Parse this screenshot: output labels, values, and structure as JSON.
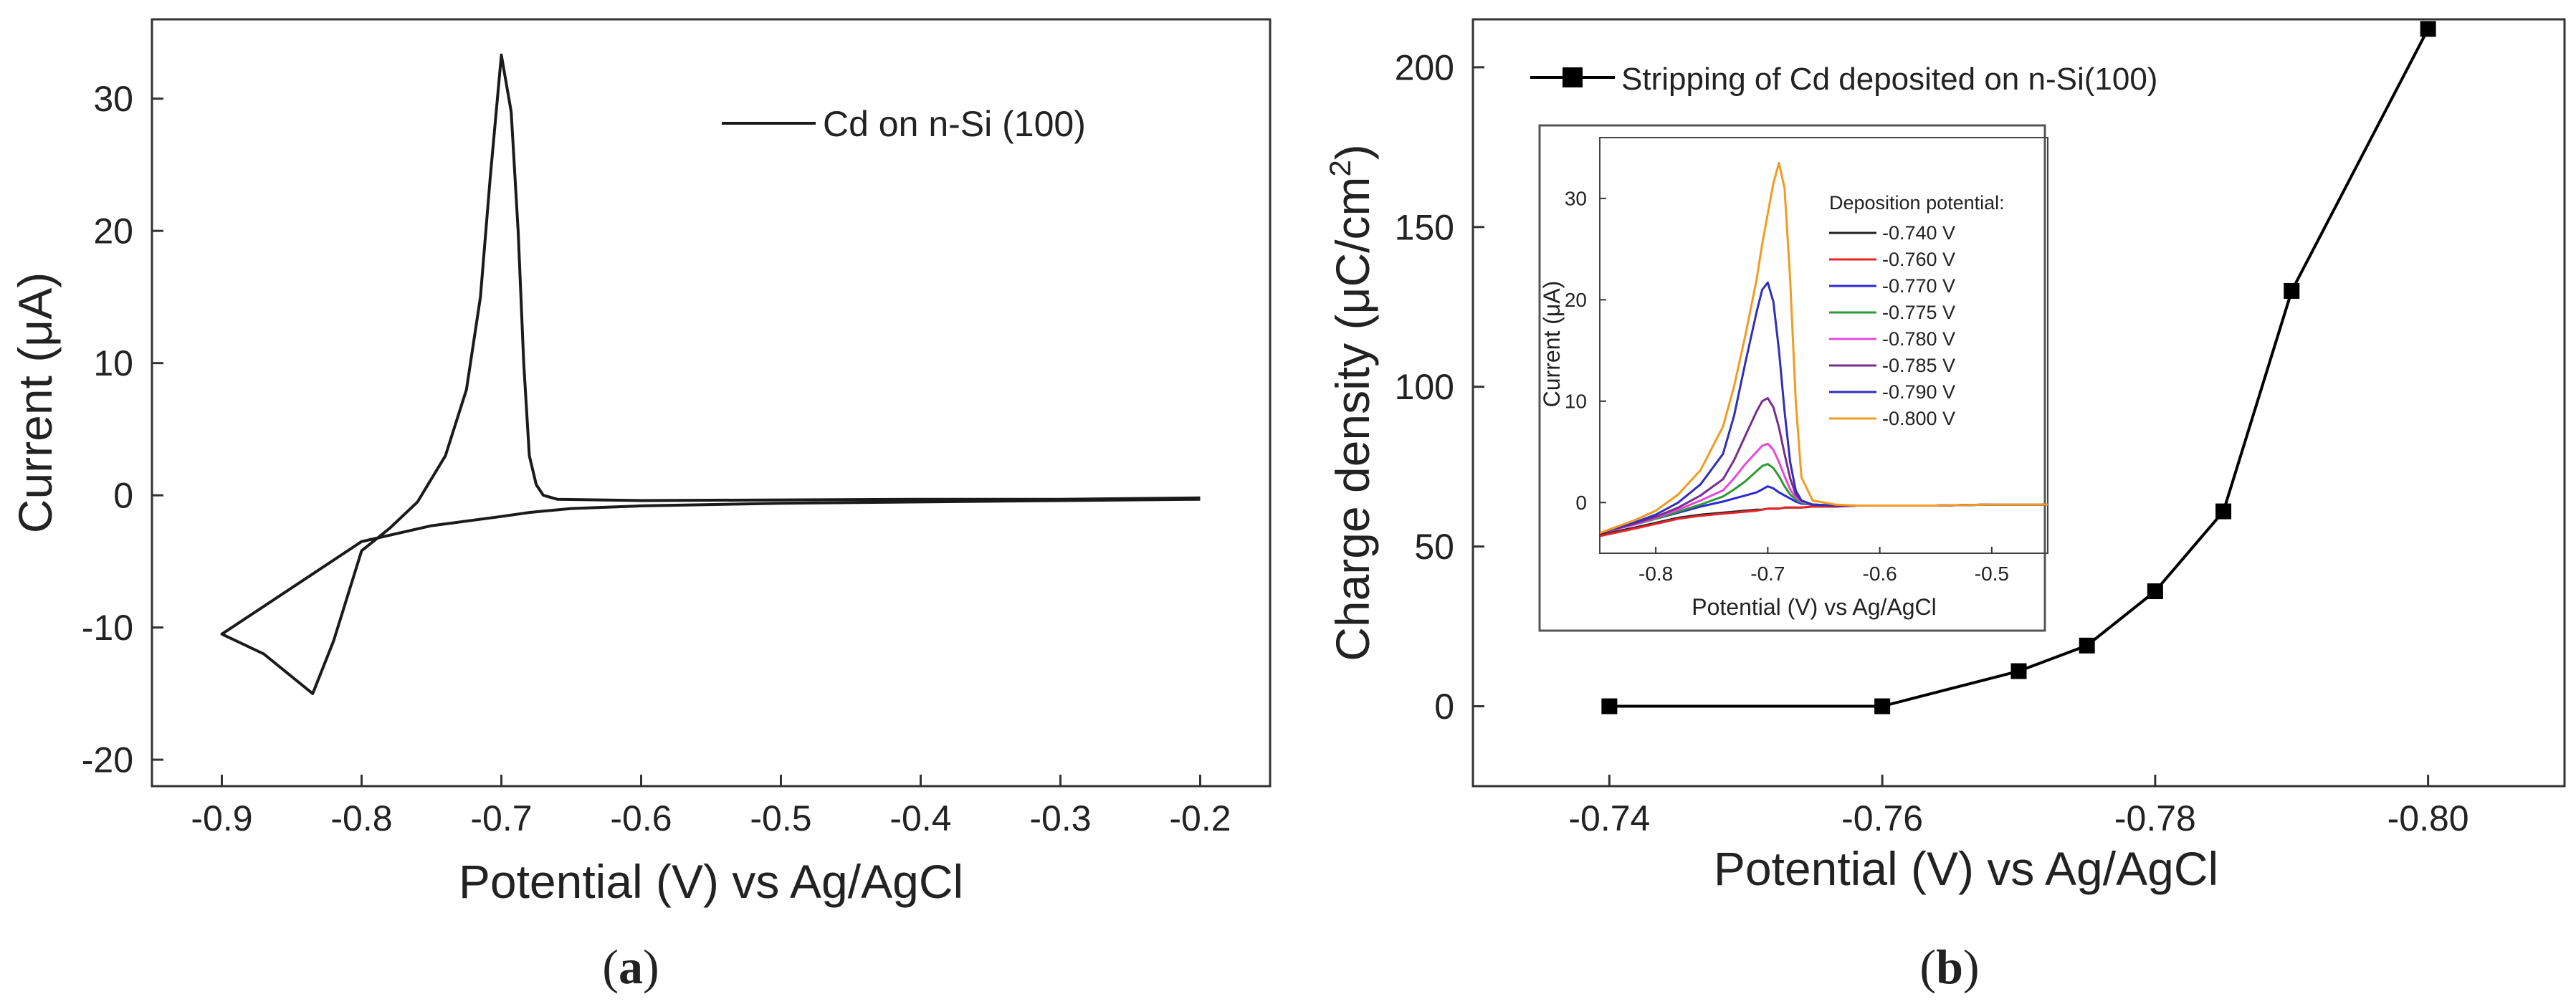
{
  "chart_data": [
    {
      "panel": "(a)",
      "panel_letter": "a",
      "type": "line",
      "title": "",
      "xlabel": "Potential (V) vs Ag/AgCl",
      "ylabel": "Current (μA)",
      "xlim": [
        -0.95,
        -0.15
      ],
      "ylim": [
        -22,
        36
      ],
      "xticks": [
        -0.9,
        -0.8,
        -0.7,
        -0.6,
        -0.5,
        -0.4,
        -0.3,
        -0.2
      ],
      "xtick_labels": [
        "-0.9",
        "-0.8",
        "-0.7",
        "-0.6",
        "-0.5",
        "-0.4",
        "-0.3",
        "-0.2"
      ],
      "yticks": [
        -20,
        -10,
        0,
        10,
        20,
        30
      ],
      "ytick_labels": [
        "-20",
        "-10",
        "0",
        "10",
        "20",
        "30"
      ],
      "legend": [
        "Cd on n-Si (100)"
      ],
      "legend_position": "top-right",
      "series": [
        {
          "name": "Cd on n-Si (100)",
          "color": "#1a1a1a",
          "x": [
            -0.2,
            -0.3,
            -0.4,
            -0.5,
            -0.6,
            -0.65,
            -0.68,
            -0.7,
            -0.75,
            -0.8,
            -0.85,
            -0.9,
            -0.87,
            -0.835,
            -0.82,
            -0.8,
            -0.78,
            -0.76,
            -0.74,
            -0.725,
            -0.715,
            -0.708,
            -0.7,
            -0.693,
            -0.688,
            -0.684,
            -0.68,
            -0.675,
            -0.67,
            -0.66,
            -0.6,
            -0.5,
            -0.4,
            -0.3,
            -0.2
          ],
          "y": [
            -0.3,
            -0.4,
            -0.5,
            -0.6,
            -0.8,
            -1.0,
            -1.3,
            -1.6,
            -2.3,
            -3.5,
            -7.0,
            -10.5,
            -12.0,
            -15.0,
            -11.0,
            -4.2,
            -2.5,
            -0.5,
            3.0,
            8.0,
            15.0,
            24.0,
            33.3,
            29.0,
            20.0,
            10.0,
            3.0,
            0.8,
            0.0,
            -0.3,
            -0.4,
            -0.35,
            -0.3,
            -0.3,
            -0.2
          ]
        }
      ]
    },
    {
      "panel": "(b)",
      "panel_letter": "b",
      "type": "line",
      "title": "",
      "xlabel": "Potential (V) vs Ag/AgCl",
      "ylabel_main": "Charge density (μC/cm",
      "ylabel_sup": "2",
      "ylabel_close": ")",
      "xlim": [
        -0.73,
        -0.81
      ],
      "ylim": [
        -25,
        215
      ],
      "xticks": [
        -0.74,
        -0.76,
        -0.78,
        -0.8
      ],
      "xtick_labels": [
        "-0.74",
        "-0.76",
        "-0.78",
        "-0.80"
      ],
      "yticks": [
        0,
        50,
        100,
        150,
        200
      ],
      "ytick_labels": [
        "0",
        "50",
        "100",
        "150",
        "200"
      ],
      "legend": [
        "Stripping of Cd deposited on n-Si(100)"
      ],
      "legend_position": "top-left",
      "series": [
        {
          "name": "Stripping of Cd deposited on n-Si(100)",
          "color": "#000000",
          "marker": "square",
          "x": [
            -0.74,
            -0.76,
            -0.77,
            -0.775,
            -0.78,
            -0.785,
            -0.79,
            -0.8
          ],
          "y": [
            0,
            0,
            11,
            19,
            36,
            61,
            130,
            212
          ]
        }
      ],
      "inset": {
        "type": "line",
        "xlabel": "Potential (V) vs Ag/AgCl",
        "ylabel": "Current (μA)",
        "xlim": [
          -0.85,
          -0.45
        ],
        "ylim": [
          -5,
          36
        ],
        "xticks": [
          -0.8,
          -0.7,
          -0.6,
          -0.5
        ],
        "xtick_labels": [
          "-0.8",
          "-0.7",
          "-0.6",
          "-0.5"
        ],
        "yticks": [
          0,
          10,
          20,
          30
        ],
        "ytick_labels": [
          "0",
          "10",
          "20",
          "30"
        ],
        "legend_title": "Deposition potential:",
        "legend_position": "top-right",
        "x": [
          -0.85,
          -0.82,
          -0.8,
          -0.78,
          -0.76,
          -0.74,
          -0.73,
          -0.72,
          -0.71,
          -0.705,
          -0.7,
          -0.695,
          -0.69,
          -0.685,
          -0.68,
          -0.675,
          -0.67,
          -0.66,
          -0.64,
          -0.62,
          -0.6,
          -0.55,
          -0.5,
          -0.45
        ],
        "series": [
          {
            "name": "-0.740 V",
            "color": "#222222",
            "y": [
              -3.2,
              -2.5,
              -2.0,
              -1.5,
              -1.2,
              -1.0,
              -0.9,
              -0.8,
              -0.7,
              -0.7,
              -0.6,
              -0.6,
              -0.6,
              -0.5,
              -0.5,
              -0.5,
              -0.5,
              -0.4,
              -0.4,
              -0.3,
              -0.3,
              -0.3,
              -0.2,
              -0.2
            ]
          },
          {
            "name": "-0.760 V",
            "color": "#e8242b",
            "y": [
              -3.3,
              -2.6,
              -2.1,
              -1.6,
              -1.3,
              -1.1,
              -1.0,
              -0.9,
              -0.8,
              -0.7,
              -0.6,
              -0.6,
              -0.6,
              -0.5,
              -0.5,
              -0.5,
              -0.5,
              -0.4,
              -0.4,
              -0.3,
              -0.3,
              -0.3,
              -0.2,
              -0.2
            ]
          },
          {
            "name": "-0.770 V",
            "color": "#2a2ad6",
            "y": [
              -3.0,
              -2.2,
              -1.6,
              -1.0,
              -0.4,
              0.1,
              0.4,
              0.7,
              1.0,
              1.3,
              1.6,
              1.4,
              1.0,
              0.7,
              0.4,
              0.1,
              -0.1,
              -0.2,
              -0.3,
              -0.3,
              -0.3,
              -0.3,
              -0.2,
              -0.2
            ]
          },
          {
            "name": "-0.775 V",
            "color": "#2e9a34",
            "y": [
              -3.0,
              -2.2,
              -1.6,
              -0.9,
              -0.2,
              0.6,
              1.3,
              2.1,
              3.1,
              3.6,
              3.8,
              3.4,
              2.6,
              1.6,
              0.8,
              0.3,
              0.0,
              -0.2,
              -0.3,
              -0.3,
              -0.3,
              -0.3,
              -0.2,
              -0.2
            ]
          },
          {
            "name": "-0.780 V",
            "color": "#e24bd8",
            "y": [
              -3.0,
              -2.2,
              -1.5,
              -0.7,
              0.2,
              1.2,
              2.4,
              3.8,
              5.0,
              5.6,
              5.8,
              5.2,
              4.0,
              2.6,
              1.3,
              0.5,
              0.1,
              -0.2,
              -0.3,
              -0.3,
              -0.3,
              -0.3,
              -0.2,
              -0.2
            ]
          },
          {
            "name": "-0.785 V",
            "color": "#7a2d8e",
            "y": [
              -3.0,
              -2.1,
              -1.4,
              -0.5,
              0.7,
              2.3,
              4.2,
              6.6,
              9.0,
              10.0,
              10.3,
              9.4,
              7.4,
              4.8,
              2.4,
              0.8,
              0.2,
              -0.2,
              -0.3,
              -0.3,
              -0.3,
              -0.3,
              -0.2,
              -0.2
            ]
          },
          {
            "name": "-0.790 V",
            "color": "#2f2fb8",
            "y": [
              -3.0,
              -2.0,
              -1.2,
              0.0,
              1.8,
              4.8,
              8.6,
              13.8,
              18.8,
              21.0,
              21.7,
              19.8,
              15.0,
              9.0,
              4.0,
              1.2,
              0.2,
              -0.2,
              -0.3,
              -0.3,
              -0.3,
              -0.3,
              -0.2,
              -0.2
            ]
          },
          {
            "name": "-0.800 V",
            "color": "#f29b22",
            "y": [
              -3.0,
              -1.8,
              -0.8,
              0.8,
              3.2,
              7.5,
              11.5,
              16.5,
              22.0,
              25.5,
              28.5,
              31.5,
              33.5,
              31.0,
              22.0,
              10.0,
              2.5,
              0.2,
              -0.2,
              -0.3,
              -0.3,
              -0.3,
              -0.2,
              -0.2
            ]
          }
        ]
      }
    }
  ]
}
